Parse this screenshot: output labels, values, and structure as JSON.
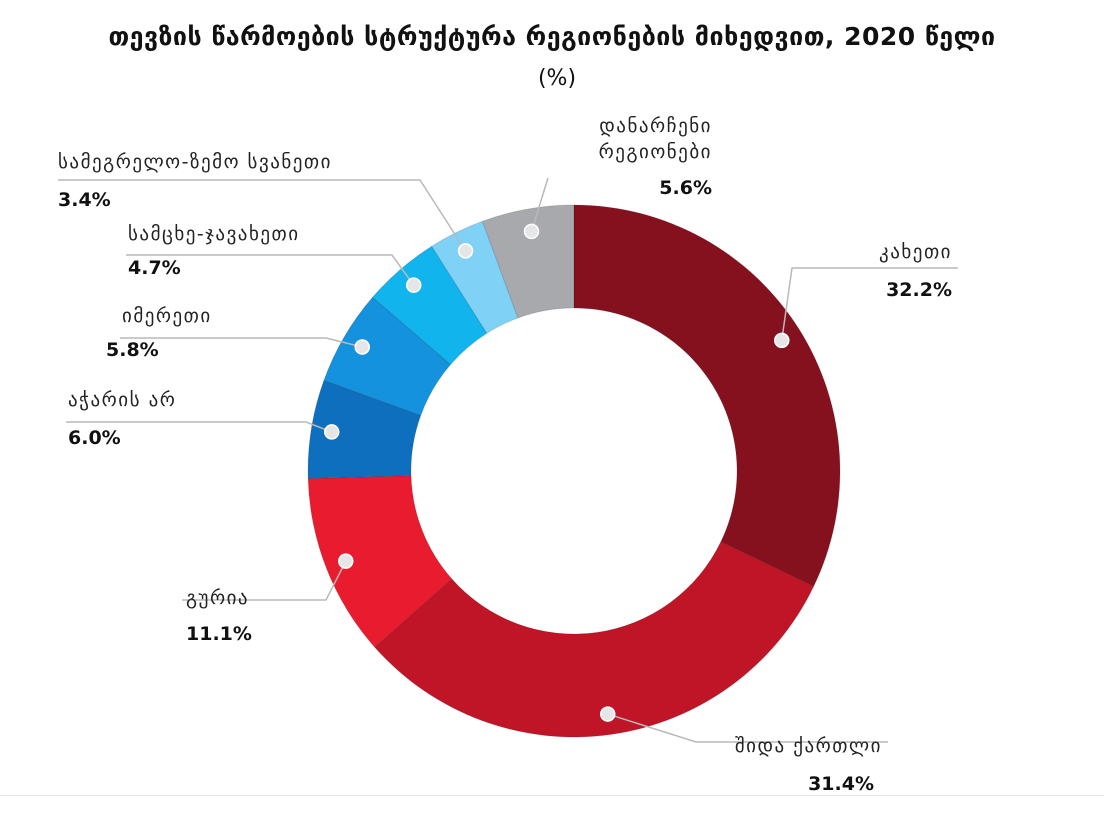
{
  "chart_data": {
    "type": "pie",
    "donut": true,
    "title": "თევზის წარმოების სტრუქტურა რეგიონების მიხედვით, 2020 წელი",
    "subtitle": "(%)",
    "slices": [
      {
        "name": "კახეთი",
        "value": 32.2,
        "label": "32.2%",
        "color": "#85111f"
      },
      {
        "name": "შიდა ქართლი",
        "value": 31.4,
        "label": "31.4%",
        "color": "#bf1527"
      },
      {
        "name": "გურია",
        "value": 11.1,
        "label": "11.1%",
        "color": "#e91c2f"
      },
      {
        "name": "აჭარის არ",
        "value": 6.0,
        "label": "6.0%",
        "color": "#0f6fbf"
      },
      {
        "name": "იმერეთი",
        "value": 5.8,
        "label": "5.8%",
        "color": "#1592dd"
      },
      {
        "name": "სამცხე-ჯავახეთი",
        "value": 4.7,
        "label": "4.7%",
        "color": "#12b4ee"
      },
      {
        "name": "სამეგრელო-ზემო სვანეთი",
        "value": 3.4,
        "label": "3.4%",
        "color": "#7fd1f6"
      },
      {
        "name": "დანარჩენი რეგიონები",
        "name_lines": [
          "დანარჩენი",
          "რეგიონები"
        ],
        "value": 5.6,
        "label": "5.6%",
        "color": "#a7a9ac"
      }
    ]
  }
}
